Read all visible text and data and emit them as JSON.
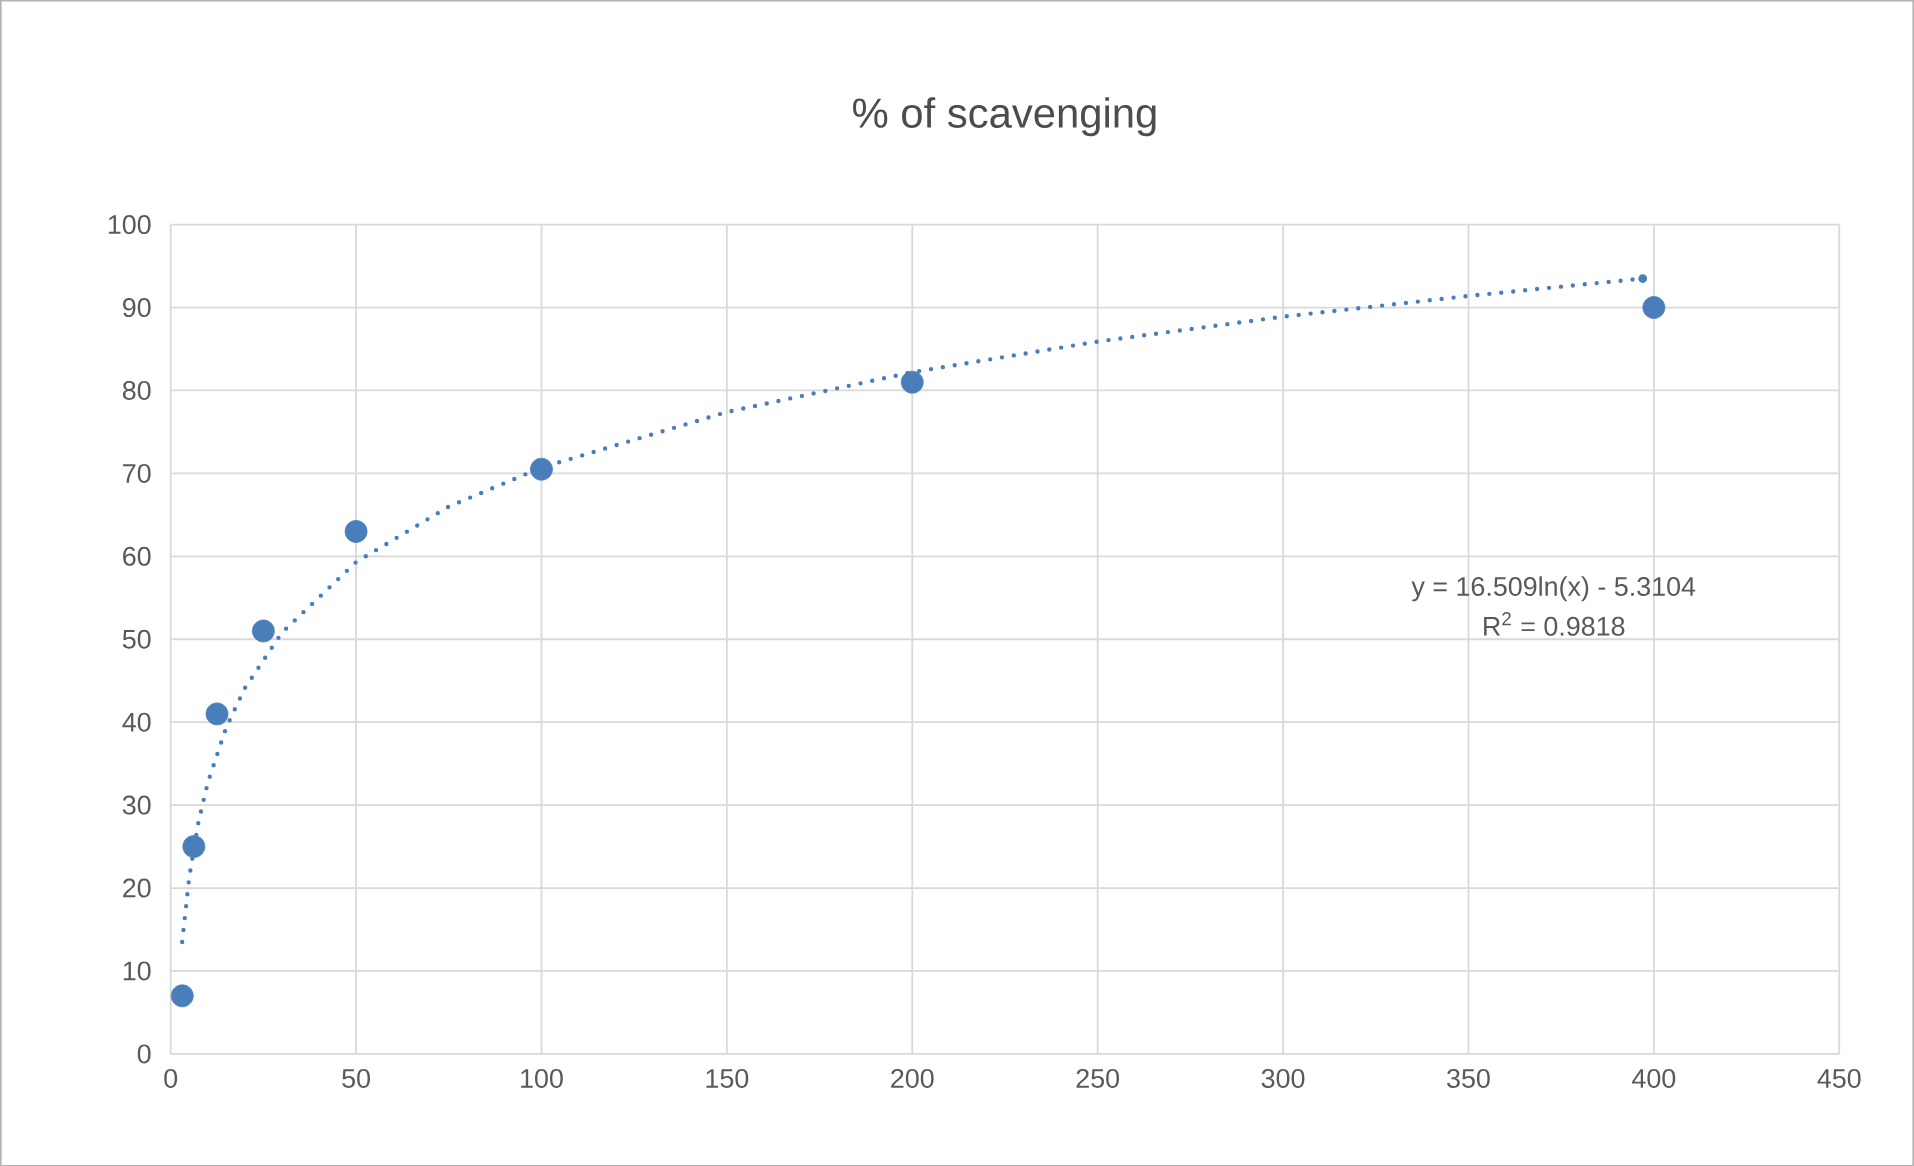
{
  "chart_data": {
    "type": "scatter",
    "title": "% of scavenging",
    "xlim": [
      0,
      450
    ],
    "xticks": [
      0,
      50,
      100,
      150,
      200,
      250,
      300,
      350,
      400,
      450
    ],
    "ylim": [
      0,
      100
    ],
    "yticks": [
      0,
      10,
      20,
      30,
      40,
      50,
      60,
      70,
      80,
      90,
      100
    ],
    "grid": true,
    "series": [
      {
        "type": "scatter",
        "color": "#4a7ebb",
        "marker": "circle",
        "x": [
          3.125,
          6.25,
          12.5,
          25,
          50,
          100,
          200,
          400
        ],
        "values": [
          7,
          25,
          41,
          51,
          63,
          70.5,
          81,
          90
        ]
      },
      {
        "type": "line",
        "color": "#4a7ebb",
        "marker": "none",
        "line_style": "dotted",
        "x": [
          3.1,
          5,
          7.5,
          10,
          15,
          20,
          30,
          50,
          75,
          100,
          150,
          200,
          250,
          300,
          350,
          397
        ],
        "values": [
          13.5,
          21.3,
          28,
          32.7,
          39.4,
          44.1,
          50.8,
          59.3,
          66,
          70.7,
          77.4,
          82.2,
          85.9,
          88.9,
          91.4,
          93.5
        ]
      }
    ],
    "annotations": [
      "y = 16.509ln(x) - 5.3104",
      "R$^{2}$ = 0.9818"
    ]
  }
}
